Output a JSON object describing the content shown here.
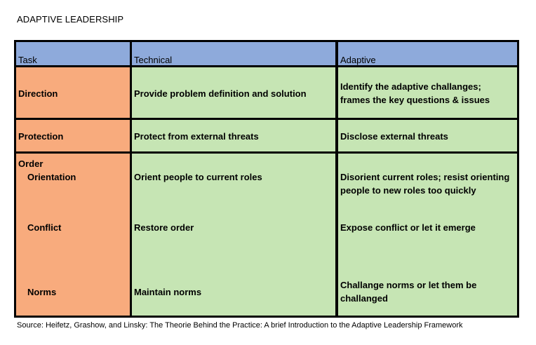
{
  "title": "ADAPTIVE LEADERSHIP",
  "table": {
    "headers": [
      "Task",
      "Technical",
      "Adaptive"
    ],
    "rows": {
      "direction": {
        "task": "Direction",
        "technical": "Provide problem definition and solution",
        "adaptive_line1": "Identify the adaptive challanges;",
        "adaptive_line2": "frames the key questions & issues"
      },
      "protection": {
        "task": "Protection",
        "technical": "Protect from external threats",
        "adaptive": "Disclose external threats"
      },
      "order": {
        "task": "Order",
        "orientation": {
          "task": "Orientation",
          "technical": "Orient people to current roles",
          "adaptive_line1": "Disorient current roles; resist orienting",
          "adaptive_line2": "people to new roles too quickly"
        },
        "conflict": {
          "task": "Conflict",
          "technical": "Restore order",
          "adaptive": "Expose conflict or let it emerge"
        },
        "norms": {
          "task": "Norms",
          "technical": "Maintain norms",
          "adaptive_line1": "Challange norms or let them be",
          "adaptive_line2": "challanged"
        }
      }
    }
  },
  "source": "Source: Heifetz, Grashow, and Linsky: The Theorie Behind the Practice: A brief Introduction to the Adaptive Leadership Framework",
  "colors": {
    "header": "#8eaadb",
    "task_column": "#f8ab7d",
    "body_cells": "#c6e5b4",
    "borders": "#000000"
  }
}
